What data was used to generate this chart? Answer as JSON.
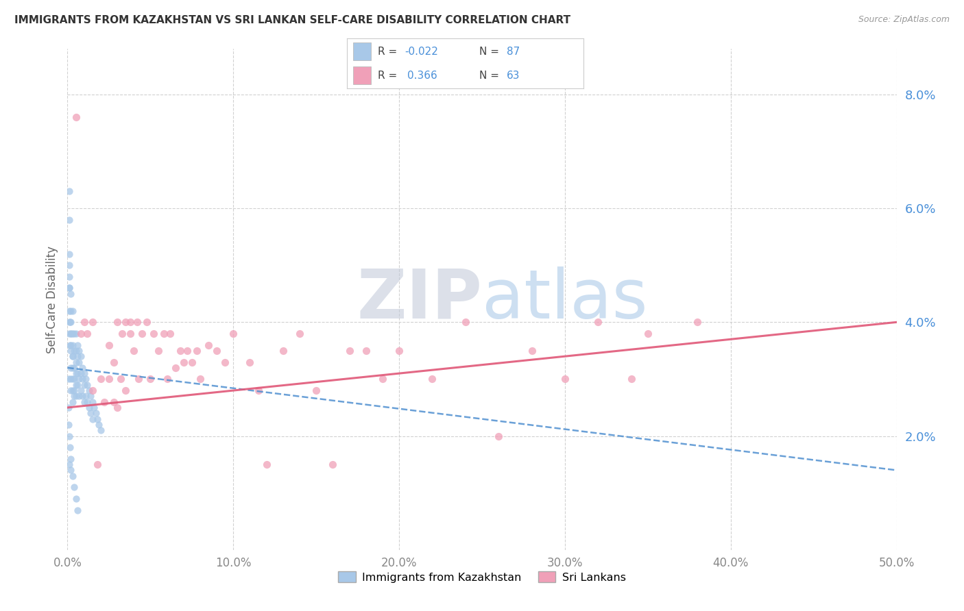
{
  "title": "IMMIGRANTS FROM KAZAKHSTAN VS SRI LANKAN SELF-CARE DISABILITY CORRELATION CHART",
  "source": "Source: ZipAtlas.com",
  "ylabel": "Self-Care Disability",
  "xlim": [
    0.0,
    0.5
  ],
  "ylim": [
    0.0,
    0.088
  ],
  "legend_label1": "Immigrants from Kazakhstan",
  "legend_label2": "Sri Lankans",
  "R1": "-0.022",
  "N1": "87",
  "R2": "0.366",
  "N2": "63",
  "color_blue": "#a8c8e8",
  "color_pink": "#f0a0b8",
  "color_blue_text": "#4a90d9",
  "color_line_blue": "#5090d0",
  "color_line_pink": "#e05878",
  "watermark_zip": "ZIP",
  "watermark_atlas": "atlas",
  "background_color": "#ffffff",
  "grid_color": "#cccccc",
  "kaz_line_start_y": 0.032,
  "kaz_line_end_y": 0.014,
  "sri_line_start_y": 0.025,
  "sri_line_end_y": 0.04,
  "kazakhstan_x": [
    0.0005,
    0.001,
    0.001,
    0.001,
    0.001,
    0.001,
    0.001,
    0.0015,
    0.0015,
    0.002,
    0.002,
    0.002,
    0.002,
    0.002,
    0.002,
    0.002,
    0.0025,
    0.003,
    0.003,
    0.003,
    0.003,
    0.003,
    0.003,
    0.003,
    0.003,
    0.004,
    0.004,
    0.004,
    0.004,
    0.004,
    0.005,
    0.005,
    0.005,
    0.005,
    0.005,
    0.005,
    0.006,
    0.006,
    0.006,
    0.006,
    0.007,
    0.007,
    0.007,
    0.007,
    0.008,
    0.008,
    0.008,
    0.009,
    0.009,
    0.009,
    0.01,
    0.01,
    0.01,
    0.011,
    0.011,
    0.012,
    0.012,
    0.013,
    0.013,
    0.014,
    0.014,
    0.015,
    0.015,
    0.016,
    0.017,
    0.018,
    0.019,
    0.02,
    0.001,
    0.001,
    0.002,
    0.003,
    0.004,
    0.001,
    0.002,
    0.001,
    0.0005,
    0.001,
    0.0015,
    0.002,
    0.002,
    0.003,
    0.004,
    0.005,
    0.006,
    0.0005,
    0.001
  ],
  "kazakhstan_y": [
    0.03,
    0.063,
    0.058,
    0.052,
    0.046,
    0.042,
    0.038,
    0.04,
    0.036,
    0.045,
    0.042,
    0.038,
    0.035,
    0.032,
    0.03,
    0.028,
    0.038,
    0.042,
    0.038,
    0.036,
    0.034,
    0.032,
    0.03,
    0.028,
    0.026,
    0.038,
    0.035,
    0.032,
    0.03,
    0.027,
    0.038,
    0.035,
    0.033,
    0.031,
    0.029,
    0.027,
    0.036,
    0.034,
    0.031,
    0.029,
    0.035,
    0.033,
    0.03,
    0.027,
    0.034,
    0.031,
    0.028,
    0.032,
    0.03,
    0.027,
    0.031,
    0.029,
    0.026,
    0.03,
    0.027,
    0.029,
    0.026,
    0.028,
    0.025,
    0.027,
    0.024,
    0.026,
    0.023,
    0.025,
    0.024,
    0.023,
    0.022,
    0.021,
    0.05,
    0.046,
    0.04,
    0.034,
    0.028,
    0.048,
    0.036,
    0.04,
    0.022,
    0.02,
    0.018,
    0.016,
    0.014,
    0.013,
    0.011,
    0.009,
    0.007,
    0.025,
    0.015
  ],
  "srilanka_x": [
    0.005,
    0.008,
    0.01,
    0.012,
    0.015,
    0.015,
    0.018,
    0.02,
    0.022,
    0.025,
    0.025,
    0.028,
    0.028,
    0.03,
    0.03,
    0.032,
    0.033,
    0.035,
    0.035,
    0.038,
    0.038,
    0.04,
    0.042,
    0.043,
    0.045,
    0.048,
    0.05,
    0.052,
    0.055,
    0.058,
    0.06,
    0.062,
    0.065,
    0.068,
    0.07,
    0.072,
    0.075,
    0.078,
    0.08,
    0.085,
    0.09,
    0.095,
    0.1,
    0.11,
    0.115,
    0.12,
    0.13,
    0.14,
    0.15,
    0.16,
    0.17,
    0.18,
    0.19,
    0.2,
    0.22,
    0.24,
    0.26,
    0.28,
    0.3,
    0.32,
    0.34,
    0.35,
    0.38
  ],
  "srilanka_y": [
    0.076,
    0.038,
    0.04,
    0.038,
    0.04,
    0.028,
    0.015,
    0.03,
    0.026,
    0.036,
    0.03,
    0.033,
    0.026,
    0.04,
    0.025,
    0.03,
    0.038,
    0.04,
    0.028,
    0.04,
    0.038,
    0.035,
    0.04,
    0.03,
    0.038,
    0.04,
    0.03,
    0.038,
    0.035,
    0.038,
    0.03,
    0.038,
    0.032,
    0.035,
    0.033,
    0.035,
    0.033,
    0.035,
    0.03,
    0.036,
    0.035,
    0.033,
    0.038,
    0.033,
    0.028,
    0.015,
    0.035,
    0.038,
    0.028,
    0.015,
    0.035,
    0.035,
    0.03,
    0.035,
    0.03,
    0.04,
    0.02,
    0.035,
    0.03,
    0.04,
    0.03,
    0.038,
    0.04
  ]
}
